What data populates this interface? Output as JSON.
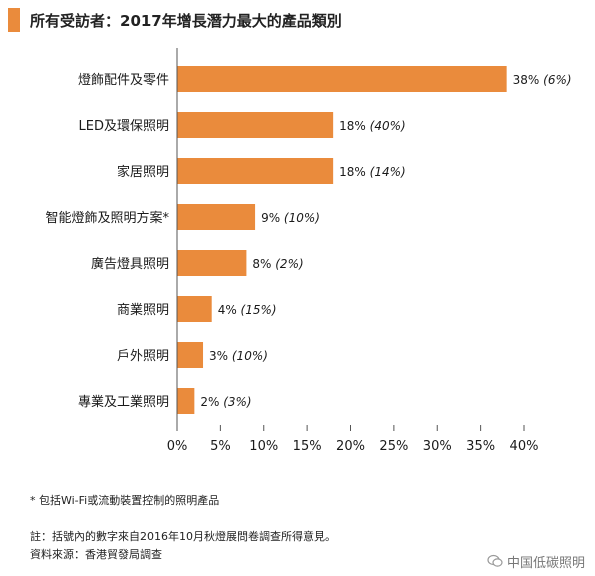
{
  "header": {
    "title": "所有受訪者：2017年增長潛力最大的產品類別",
    "accent_color": "#ea8b3c"
  },
  "chart_data": {
    "type": "bar",
    "orientation": "horizontal",
    "categories": [
      "燈飾配件及零件",
      "LED及環保照明",
      "家居照明",
      "智能燈飾及照明方案*",
      "廣告燈具照明",
      "商業照明",
      "戶外照明",
      "專業及工業照明"
    ],
    "values": [
      38,
      18,
      18,
      9,
      8,
      4,
      3,
      2
    ],
    "value_labels": [
      "38%",
      "18%",
      "18%",
      "9%",
      "8%",
      "4%",
      "3%",
      "2%"
    ],
    "prior_labels": [
      "(6%)",
      "(40%)",
      "(14%)",
      "(10%)",
      "(2%)",
      "(15%)",
      "(10%)",
      "(3%)"
    ],
    "xlim": [
      0,
      40
    ],
    "xticks": [
      "0%",
      "5%",
      "10%",
      "15%",
      "20%",
      "25%",
      "30%",
      "35%",
      "40%"
    ],
    "bar_color": "#ea8b3c",
    "grid": false
  },
  "footnotes": {
    "asterisk": "* 包括Wi-Fi或流動裝置控制的照明產品",
    "note": "註：括號內的數字來自2016年10月秋燈展問卷調查所得意見。",
    "source": "資料來源：香港貿發局調查"
  },
  "watermark": {
    "text": "中国低碳照明",
    "icon": "wechat-icon"
  }
}
